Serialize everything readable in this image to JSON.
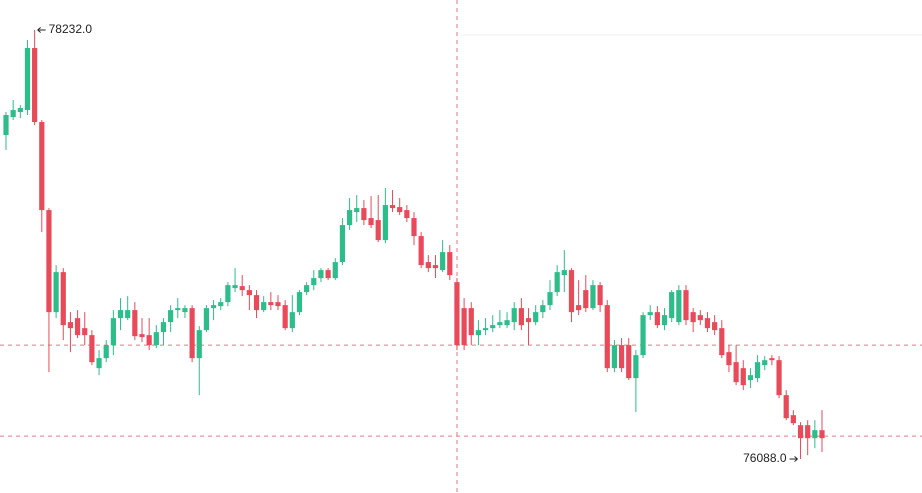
{
  "chart_data": {
    "type": "candlestick",
    "ylim": [
      75918,
      78382
    ],
    "up_color": "#2dbd8a",
    "down_color": "#e84a5a",
    "max_label": "78232.0",
    "min_label": "76088.0",
    "price_lines": [
      76657,
      76202
    ],
    "price_line_color": "#e07a80",
    "open": [
      77707,
      77797,
      77822,
      77832,
      78142,
      77772,
      77332,
      76822,
      77022,
      76772,
      76792,
      76742,
      76707,
      76542,
      76592,
      76657,
      76792,
      76792,
      76832,
      76712,
      76707,
      76657,
      76722,
      76772,
      76832,
      76822,
      76842,
      76592,
      76732,
      76842,
      76852,
      76872,
      76942,
      76952,
      76932,
      76907,
      76832,
      76872,
      76872,
      76857,
      76742,
      76822,
      76922,
      76957,
      76992,
      77032,
      76992,
      77072,
      77257,
      77322,
      77342,
      77292,
      77282,
      77182,
      77357,
      77347,
      77332,
      77292,
      77202,
      77072,
      77057,
      77032,
      77122,
      76972,
      76842,
      76842,
      76707,
      76732,
      76742,
      76757,
      76757,
      76772,
      76842,
      76792,
      76772,
      76822,
      76857,
      76922,
      77007,
      77032,
      76857,
      76932,
      76842,
      76957,
      76857,
      76542,
      76657,
      76657,
      76492,
      76607,
      76807,
      76822,
      76757,
      76792,
      76772,
      76932,
      76822,
      76807,
      76792,
      76772,
      76742,
      76622,
      76572,
      76542,
      76482,
      76492,
      76557,
      76592,
      76582,
      76407,
      76307,
      76257,
      76257,
      76192,
      76232
    ],
    "high": [
      77822,
      77882,
      77857,
      78182,
      78232,
      77782,
      77342,
      77057,
      77042,
      76822,
      76832,
      76822,
      76732,
      76632,
      76682,
      76832,
      76892,
      76902,
      76872,
      76792,
      76792,
      76757,
      76792,
      76857,
      76892,
      76857,
      76857,
      76752,
      76857,
      76882,
      76892,
      76972,
      77042,
      77007,
      76957,
      76932,
      76902,
      76922,
      76907,
      76882,
      76907,
      76932,
      76972,
      77032,
      77042,
      77042,
      77092,
      77292,
      77392,
      77407,
      77382,
      77402,
      77407,
      77442,
      77432,
      77392,
      77357,
      77322,
      77222,
      77107,
      77107,
      77182,
      77157,
      76992,
      76892,
      76872,
      76782,
      76792,
      76807,
      76832,
      76822,
      76872,
      76892,
      76842,
      76857,
      76882,
      76982,
      77057,
      77132,
      77042,
      76982,
      77007,
      76982,
      76972,
      76882,
      76682,
      76692,
      76692,
      76632,
      76822,
      76857,
      76852,
      76842,
      76932,
      76957,
      76957,
      76842,
      76832,
      76822,
      76807,
      76782,
      76657,
      76657,
      76582,
      76542,
      76607,
      76602,
      76607,
      76602,
      76432,
      76332,
      76272,
      76282,
      76282,
      76332
    ],
    "low": [
      77632,
      77782,
      77792,
      77807,
      77757,
      77222,
      76522,
      76792,
      76682,
      76622,
      76692,
      76657,
      76557,
      76507,
      76572,
      76607,
      76732,
      76782,
      76682,
      76672,
      76632,
      76642,
      76657,
      76722,
      76792,
      76792,
      76572,
      76407,
      76722,
      76782,
      76832,
      76852,
      76922,
      76902,
      76832,
      76792,
      76822,
      76832,
      76832,
      76732,
      76722,
      76807,
      76907,
      76932,
      76972,
      76982,
      76982,
      77057,
      77232,
      77272,
      77257,
      77242,
      77172,
      77167,
      77322,
      77307,
      77272,
      77157,
      77042,
      77022,
      76992,
      77022,
      76982,
      76632,
      76632,
      76657,
      76657,
      76707,
      76722,
      76742,
      76742,
      76732,
      76732,
      76657,
      76757,
      76792,
      76832,
      76902,
      76922,
      76772,
      76807,
      76822,
      76832,
      76822,
      76522,
      76522,
      76522,
      76482,
      76322,
      76592,
      76782,
      76742,
      76732,
      76772,
      76757,
      76757,
      76722,
      76757,
      76722,
      76707,
      76592,
      76522,
      76457,
      76432,
      76442,
      76472,
      76532,
      76557,
      76392,
      76282,
      76257,
      76088,
      76107,
      76142,
      76122
    ],
    "close": [
      77807,
      77832,
      77842,
      78142,
      77772,
      77332,
      76822,
      77022,
      76757,
      76742,
      76707,
      76707,
      76572,
      76592,
      76657,
      76792,
      76832,
      76832,
      76702,
      76697,
      76657,
      76722,
      76772,
      76832,
      76842,
      76842,
      76592,
      76732,
      76842,
      76857,
      76872,
      76957,
      76957,
      76932,
      76907,
      76832,
      76872,
      76857,
      76852,
      76742,
      76822,
      76922,
      76957,
      76992,
      77032,
      76992,
      77072,
      77257,
      77332,
      77342,
      77282,
      77257,
      77182,
      77357,
      77342,
      77322,
      77292,
      77202,
      77057,
      77042,
      77042,
      77122,
      77007,
      76657,
      76657,
      76707,
      76732,
      76742,
      76757,
      76772,
      76782,
      76842,
      76757,
      76772,
      76822,
      76857,
      76922,
      77022,
      77032,
      76822,
      76832,
      76842,
      76957,
      76857,
      76542,
      76657,
      76542,
      76492,
      76607,
      76807,
      76822,
      76757,
      76807,
      76922,
      76932,
      76782,
      76772,
      76782,
      76742,
      76732,
      76607,
      76557,
      76472,
      76457,
      76507,
      76572,
      76582,
      76582,
      76407,
      76292,
      76267,
      76192,
      76192,
      76232,
      76192
    ]
  }
}
